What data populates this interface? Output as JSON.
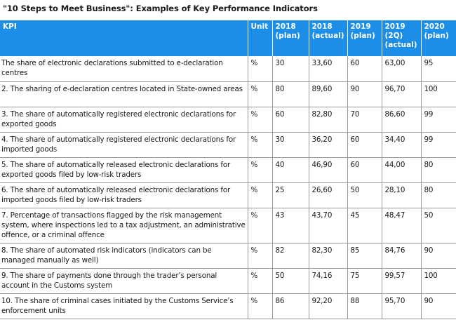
{
  "title": "\"10 Steps to Meet Business\": Examples of Key Performance Indicators",
  "headers": [
    "KPI",
    "Unit",
    "2018\n(plan)",
    "2018\n(actual)",
    "2019\n(plan)",
    "2019\n(2Q)\n(actual)",
    "2020\n(plan)"
  ],
  "rows": [
    {
      "kpi": "The share of electronic declarations submitted to e-declaration centres",
      "unit": "%",
      "v2018plan": "30",
      "v2018actual": "33,60",
      "v2019plan": "60",
      "v2019actual": "63,00",
      "v2020plan": "95"
    },
    {
      "kpi": "2. The sharing of e-declaration centres located in State-owned areas",
      "unit": "%",
      "v2018plan": "80",
      "v2018actual": "89,60",
      "v2019plan": "90",
      "v2019actual": "96,70",
      "v2020plan": "100"
    },
    {
      "kpi": "3. The share of automatically registered electronic declarations for exported goods",
      "unit": "%",
      "v2018plan": "60",
      "v2018actual": "82,80",
      "v2019plan": "70",
      "v2019actual": "86,60",
      "v2020plan": "99"
    },
    {
      "kpi": "4. The share of automatically registered electronic declarations for imported goods",
      "unit": "%",
      "v2018plan": "30",
      "v2018actual": "36,20",
      "v2019plan": "60",
      "v2019actual": "34,40",
      "v2020plan": "99"
    },
    {
      "kpi": "5. The share of automatically released electronic declarations for exported goods filed by low-risk traders",
      "unit": "%",
      "v2018plan": "40",
      "v2018actual": "46,90",
      "v2019plan": "60",
      "v2019actual": "44,00",
      "v2020plan": "80"
    },
    {
      "kpi": "6. The share of automatically released electronic declarations for imported goods filed by low-risk traders",
      "unit": "%",
      "v2018plan": "25",
      "v2018actual": "26,60",
      "v2019plan": "50",
      "v2019actual": "28,10",
      "v2020plan": "80"
    },
    {
      "kpi": "7. Percentage of transactions flagged by the risk management system, where inspections led to a tax adjustment, an administrative offence, or a criminal offence",
      "unit": "%",
      "v2018plan": "43",
      "v2018actual": "43,70",
      "v2019plan": "45",
      "v2019actual": "48,47",
      "v2020plan": "50"
    },
    {
      "kpi": "8. The share of automated risk indicators (indicators can be managed manually as well)",
      "unit": "%",
      "v2018plan": "82",
      "v2018actual": "82,30",
      "v2019plan": "85",
      "v2019actual": "84,76",
      "v2020plan": "90"
    },
    {
      "kpi": "9. The share of payments done through the trader’s personal account in the Customs system",
      "unit": "%",
      "v2018plan": "50",
      "v2018actual": "74,16",
      "v2019plan": "75",
      "v2019actual": "99,57",
      "v2020plan": "100"
    },
    {
      "kpi": "10. The share of criminal cases initiated by the Customs Service’s enforcement units",
      "unit": "%",
      "v2018plan": "86",
      "v2018actual": "92,20",
      "v2019plan": "88",
      "v2019actual": "95,70",
      "v2020plan": "90"
    }
  ]
}
